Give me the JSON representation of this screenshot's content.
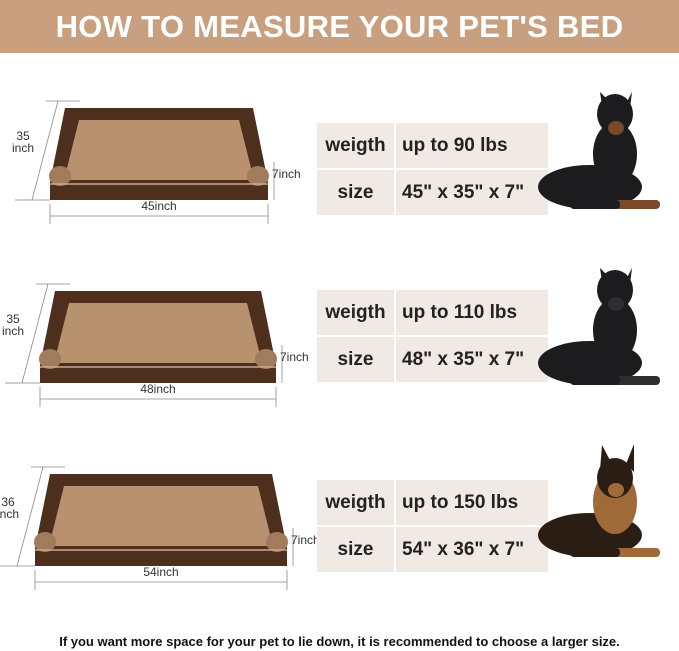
{
  "title": "HOW TO MEASURE YOUR PET'S BED",
  "colors": {
    "header": "#c9a07f",
    "bed_frame": "#4e2f1d",
    "cushion": "#b8916f",
    "table_cell": "#f1e9e4"
  },
  "rows": [
    {
      "weight_label": "weigth",
      "weight": "up to 90 lbs",
      "size_label": "size",
      "size": "45\" x 35\" x 7\"",
      "width_dim": "45inch",
      "depth_dim": "35\ninch",
      "height_dim": "7inch",
      "dog": "doberman"
    },
    {
      "weight_label": "weigth",
      "weight": "up to 110 lbs",
      "size_label": "size",
      "size": "48\" x 35\" x 7\"",
      "width_dim": "48inch",
      "depth_dim": "35\ninch",
      "height_dim": "7inch",
      "dog": "great-dane"
    },
    {
      "weight_label": "weigth",
      "weight": "up to 150 lbs",
      "size_label": "size",
      "size": "54\" x 36\" x 7\"",
      "width_dim": "54inch",
      "depth_dim": "36\ninch",
      "height_dim": "7inch",
      "dog": "german-shepherd"
    }
  ],
  "footer": "If you want more space for your pet to lie down, it is recommended to choose a larger size."
}
